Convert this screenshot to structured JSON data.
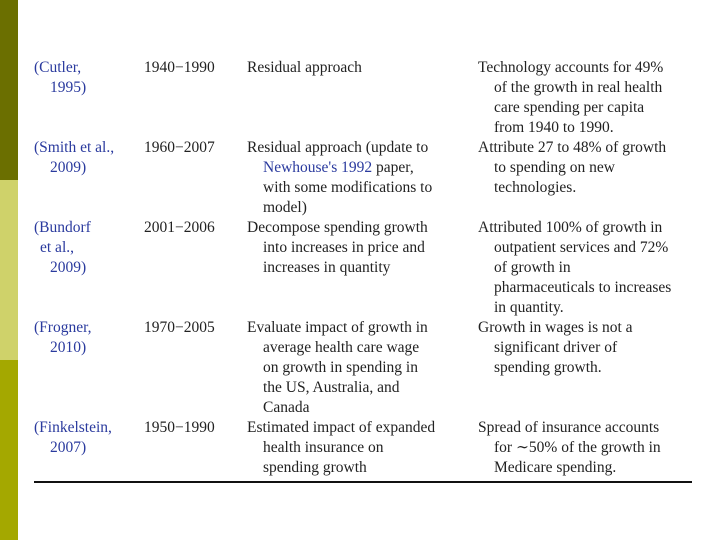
{
  "colors": {
    "bar_top": "#6b6f00",
    "bar_mid": "#cfd26a",
    "bar_bot": "#a4a800",
    "link": "#2a3a9e"
  },
  "rows": [
    {
      "study": [
        "(Cutler,",
        "1995)"
      ],
      "period": "1940−1990",
      "method": [
        "Residual approach"
      ],
      "finding": [
        "Technology accounts for 49%",
        "of the growth in real health",
        "care spending per capita",
        "from 1940 to 1990."
      ]
    },
    {
      "study": [
        "(Smith et al.,",
        "2009)"
      ],
      "period": "1960−2007",
      "method_pre": "Residual approach (update to",
      "method_link": "Newhouse's 1992",
      "method_link_tail": " paper,",
      "method_rest": [
        "with some modifications to",
        "model)"
      ],
      "finding": [
        "Attribute 27 to 48% of growth",
        "to spending on new",
        "technologies."
      ]
    },
    {
      "study": [
        "(Bundorf",
        "et al.,",
        "2009)"
      ],
      "period": "2001−2006",
      "method": [
        "Decompose spending growth",
        "into increases in price and",
        "increases in quantity"
      ],
      "finding": [
        "Attributed 100% of growth in",
        "outpatient services and 72%",
        "of growth in",
        "pharmaceuticals to increases",
        "in quantity."
      ]
    },
    {
      "study": [
        "(Frogner,",
        "2010)"
      ],
      "period": "1970−2005",
      "method": [
        "Evaluate impact of growth in",
        "average health care wage",
        "on growth in spending in",
        "the US, Australia, and",
        "Canada"
      ],
      "finding": [
        "Growth in wages is not a",
        "significant driver of",
        "spending growth."
      ]
    },
    {
      "study": [
        "(Finkelstein,",
        "2007)"
      ],
      "period": "1950−1990",
      "method": [
        "Estimated impact of expanded",
        "health insurance on",
        "spending growth"
      ],
      "finding": [
        "Spread of insurance accounts",
        "for ∼50% of the growth in",
        "Medicare spending."
      ]
    }
  ]
}
